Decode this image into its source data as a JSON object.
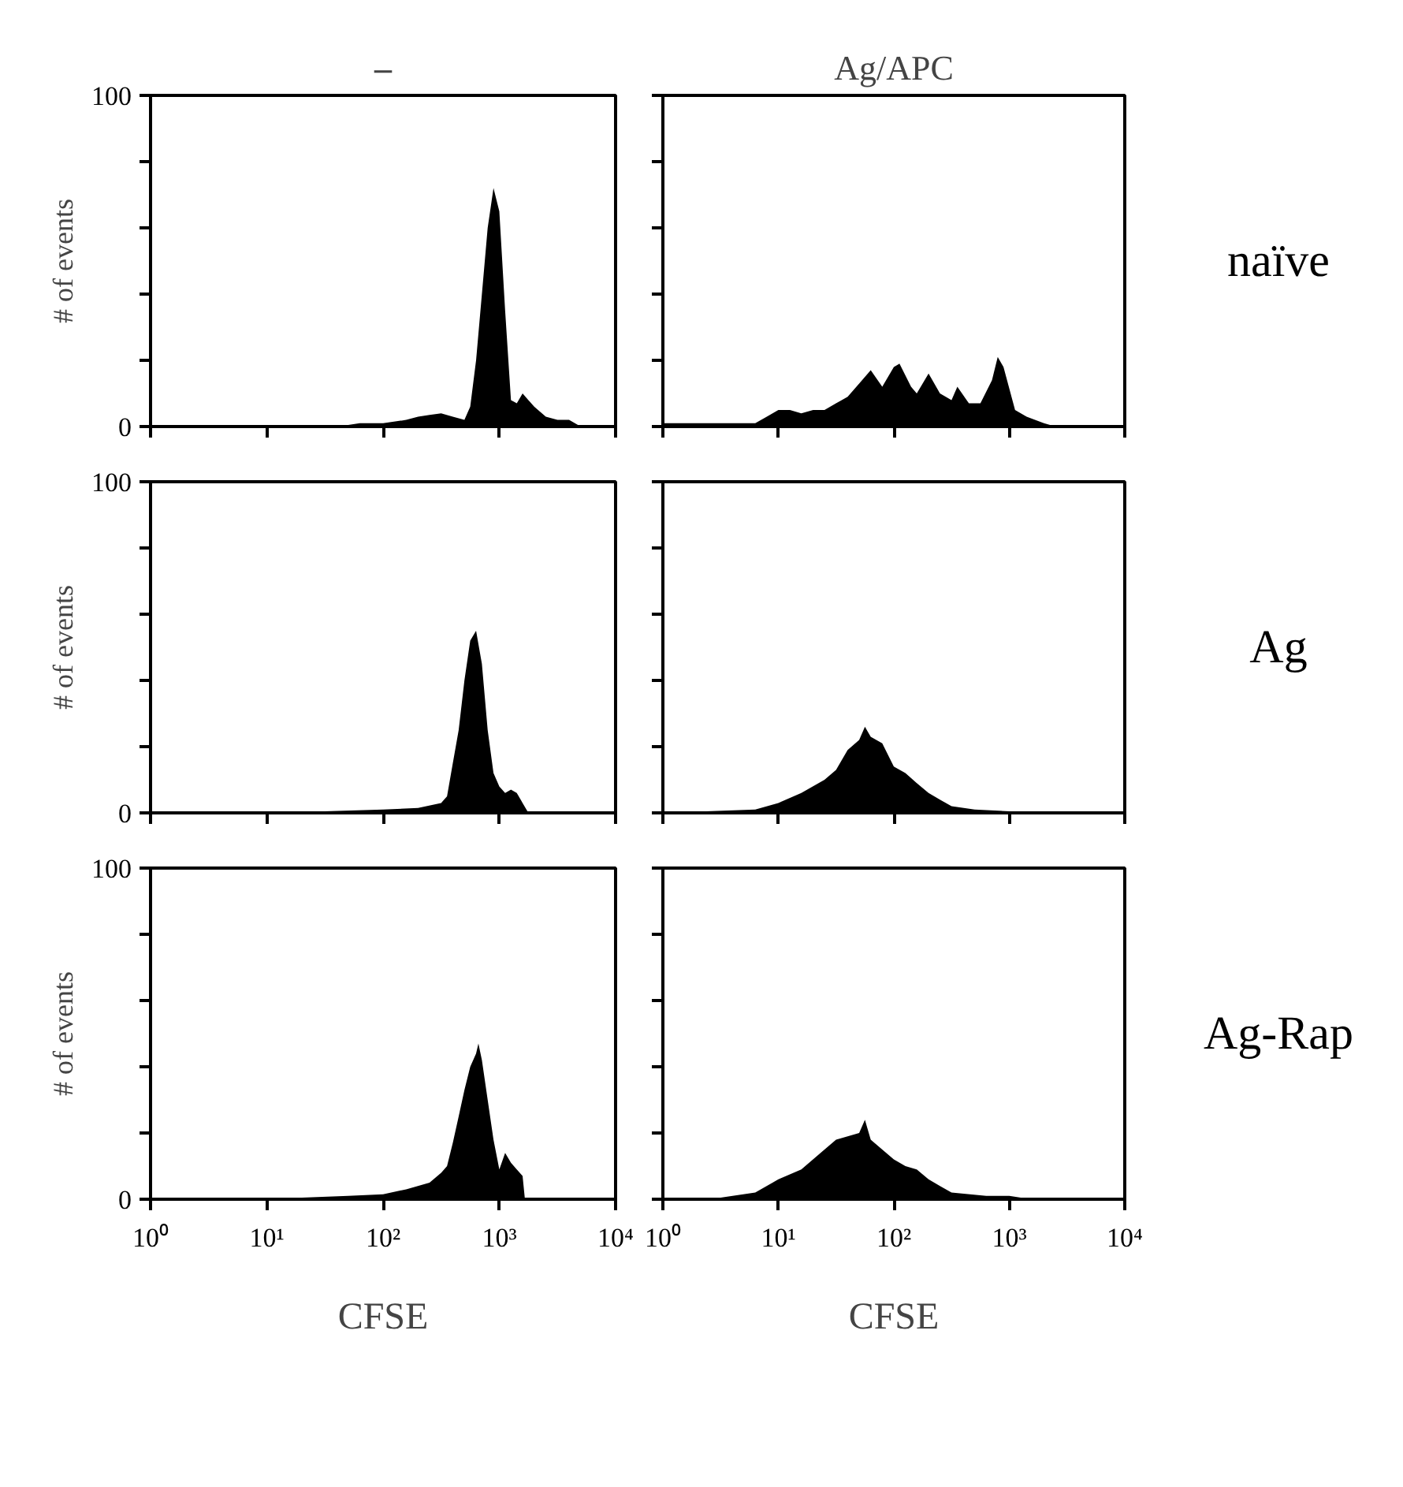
{
  "chart_data": [
    {
      "type": "area",
      "title": "–",
      "ylabel": "# of events",
      "color": "#000000",
      "log": "x",
      "xlim": [
        1,
        10000
      ],
      "ylim": [
        0,
        100
      ],
      "tick_labels": "y",
      "xticks": [
        {
          "value": 1,
          "label": null
        },
        {
          "value": 10,
          "label": null
        },
        {
          "value": 100,
          "label": null
        },
        {
          "value": 1000,
          "label": null
        },
        {
          "value": 10000,
          "label": null
        }
      ],
      "yticks": [
        0,
        {
          "value": 20,
          "label": null
        },
        {
          "value": 40,
          "label": null
        },
        {
          "value": 60,
          "label": null
        },
        {
          "value": 80,
          "label": null
        },
        100
      ],
      "x": [
        1,
        39.8,
        50.1,
        63.1,
        100,
        158,
        200,
        251,
        316,
        398,
        501,
        562,
        631,
        708,
        794,
        891,
        1000,
        1122,
        1259,
        1413,
        1585,
        1778,
        1995,
        2512,
        3162,
        3981,
        5012,
        10000
      ],
      "values": [
        0,
        0,
        0.5,
        1,
        1,
        2,
        3,
        3.5,
        4,
        3,
        2,
        6,
        20,
        40,
        60,
        72,
        65,
        35,
        8,
        7,
        10,
        8,
        6,
        3,
        2,
        2,
        0,
        0
      ]
    },
    {
      "type": "area",
      "title": "Ag/APC",
      "annotations": [
        "naïve"
      ],
      "color": "#000000",
      "log": "x",
      "xlim": [
        1,
        10000
      ],
      "ylim": [
        0,
        100
      ],
      "tick_labels": false,
      "xticks": [
        {
          "value": 1,
          "label": null
        },
        {
          "value": 10,
          "label": null
        },
        {
          "value": 100,
          "label": null
        },
        {
          "value": 1000,
          "label": null
        },
        {
          "value": 10000,
          "label": null
        }
      ],
      "yticks": [
        {
          "value": 0,
          "label": null
        },
        {
          "value": 20,
          "label": null
        },
        {
          "value": 40,
          "label": null
        },
        {
          "value": 60,
          "label": null
        },
        {
          "value": 80,
          "label": null
        },
        {
          "value": 100,
          "label": null
        }
      ],
      "x": [
        1,
        6.31,
        7.94,
        10,
        12.6,
        15.8,
        20,
        25.1,
        31.6,
        39.8,
        50.1,
        63.1,
        79.4,
        100,
        112,
        141,
        158,
        200,
        251,
        316,
        355,
        447,
        562,
        708,
        794,
        891,
        1122,
        1413,
        1995,
        2512,
        10000
      ],
      "values": [
        1,
        1,
        3,
        5,
        5,
        4,
        5,
        5,
        7,
        9,
        13,
        17,
        12,
        18,
        19,
        12,
        10,
        16,
        10,
        8,
        12,
        7,
        7,
        14,
        21,
        18,
        5,
        3,
        1,
        0,
        0
      ]
    },
    {
      "type": "area",
      "ylabel": "# of events",
      "color": "#000000",
      "log": "x",
      "xlim": [
        1,
        10000
      ],
      "ylim": [
        0,
        100
      ],
      "tick_labels": "y",
      "xticks": [
        {
          "value": 1,
          "label": null
        },
        {
          "value": 10,
          "label": null
        },
        {
          "value": 100,
          "label": null
        },
        {
          "value": 1000,
          "label": null
        },
        {
          "value": 10000,
          "label": null
        }
      ],
      "yticks": [
        0,
        {
          "value": 20,
          "label": null
        },
        {
          "value": 40,
          "label": null
        },
        {
          "value": 60,
          "label": null
        },
        {
          "value": 80,
          "label": null
        },
        100
      ],
      "x": [
        1,
        25.1,
        31.6,
        100,
        200,
        316,
        355,
        398,
        447,
        501,
        562,
        631,
        708,
        794,
        891,
        1000,
        1122,
        1259,
        1413,
        1585,
        1778,
        10000
      ],
      "values": [
        0,
        0,
        0.5,
        1,
        1.5,
        3,
        5,
        15,
        25,
        40,
        52,
        55,
        45,
        25,
        12,
        8,
        6,
        7,
        6,
        3,
        0,
        0
      ]
    },
    {
      "type": "area",
      "annotations": [
        "Ag"
      ],
      "color": "#000000",
      "log": "x",
      "xlim": [
        1,
        10000
      ],
      "ylim": [
        0,
        100
      ],
      "tick_labels": false,
      "xticks": [
        {
          "value": 1,
          "label": null
        },
        {
          "value": 10,
          "label": null
        },
        {
          "value": 100,
          "label": null
        },
        {
          "value": 1000,
          "label": null
        },
        {
          "value": 10000,
          "label": null
        }
      ],
      "yticks": [
        {
          "value": 0,
          "label": null
        },
        {
          "value": 20,
          "label": null
        },
        {
          "value": 40,
          "label": null
        },
        {
          "value": 60,
          "label": null
        },
        {
          "value": 80,
          "label": null
        },
        {
          "value": 100,
          "label": null
        }
      ],
      "x": [
        1,
        6.31,
        10,
        15.8,
        25.1,
        31.6,
        39.8,
        50.1,
        56.2,
        63.1,
        79.4,
        100,
        126,
        158,
        200,
        251,
        316,
        501,
        1000,
        1585,
        10000
      ],
      "values": [
        0,
        1,
        3,
        6,
        10,
        13,
        19,
        22,
        26,
        23,
        21,
        14,
        12,
        9,
        6,
        4,
        2,
        1,
        0.5,
        0,
        0
      ]
    },
    {
      "type": "area",
      "ylabel": "# of events",
      "xlabel": "CFSE",
      "color": "#000000",
      "log": "x",
      "xlim": [
        1,
        10000
      ],
      "ylim": [
        0,
        100
      ],
      "xticks": [
        {
          "value": 1,
          "label": "10⁰"
        },
        {
          "value": 10,
          "label": "10¹"
        },
        {
          "value": 100,
          "label": "10²"
        },
        {
          "value": 1000,
          "label": "10³"
        },
        {
          "value": 10000,
          "label": "10⁴"
        }
      ],
      "yticks": [
        0,
        {
          "value": 20,
          "label": null
        },
        {
          "value": 40,
          "label": null
        },
        {
          "value": 60,
          "label": null
        },
        {
          "value": 80,
          "label": null
        },
        100
      ],
      "x": [
        1,
        20,
        50.1,
        100,
        158,
        251,
        316,
        355,
        398,
        447,
        501,
        562,
        631,
        661,
        708,
        794,
        891,
        1000,
        1122,
        1259,
        1413,
        1585,
        1660,
        10000
      ],
      "values": [
        0,
        0.5,
        1,
        1.5,
        3,
        5,
        8,
        10,
        17,
        25,
        33,
        40,
        44,
        47,
        42,
        30,
        18,
        9,
        14,
        11,
        9,
        7,
        0,
        0
      ]
    },
    {
      "type": "area",
      "xlabel": "CFSE",
      "annotations": [
        "Ag-Rap"
      ],
      "color": "#000000",
      "log": "x",
      "xlim": [
        1,
        10000
      ],
      "ylim": [
        0,
        100
      ],
      "tick_labels": "x",
      "xticks": [
        {
          "value": 1,
          "label": "10⁰"
        },
        {
          "value": 10,
          "label": "10¹"
        },
        {
          "value": 100,
          "label": "10²"
        },
        {
          "value": 1000,
          "label": "10³"
        },
        {
          "value": 10000,
          "label": "10⁴"
        }
      ],
      "yticks": [
        {
          "value": 0,
          "label": null
        },
        {
          "value": 20,
          "label": null
        },
        {
          "value": 40,
          "label": null
        },
        {
          "value": 60,
          "label": null
        },
        {
          "value": 80,
          "label": null
        },
        {
          "value": 100,
          "label": null
        }
      ],
      "x": [
        1,
        3.16,
        6.31,
        8.91,
        10,
        15.8,
        25.1,
        31.6,
        39.8,
        50.1,
        56.2,
        63.1,
        79.4,
        100,
        126,
        158,
        200,
        251,
        316,
        631,
        1000,
        1259,
        1585,
        10000
      ],
      "values": [
        0.5,
        0.5,
        2,
        5,
        6,
        9,
        15,
        18,
        19,
        20,
        24,
        18,
        15,
        12,
        10,
        9,
        6,
        4,
        2,
        1,
        1,
        0.5,
        0,
        0
      ]
    }
  ]
}
